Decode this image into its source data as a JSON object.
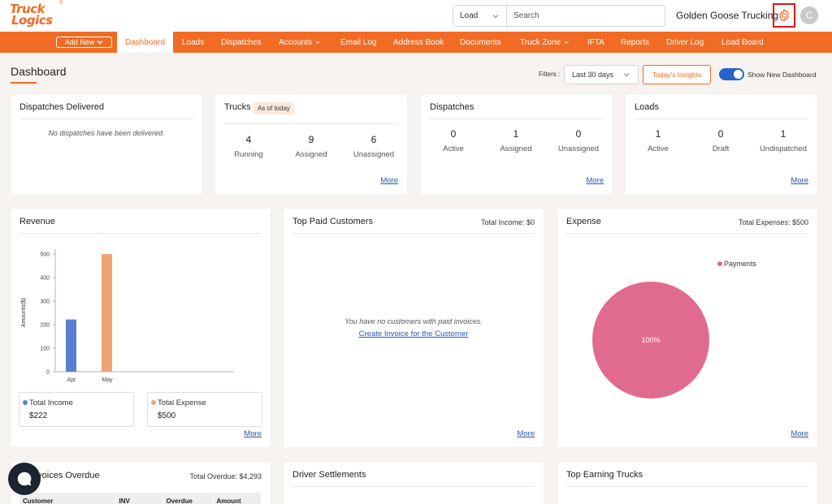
{
  "brand": {
    "line1": "Truck",
    "line2": "Logics",
    "reg": "®"
  },
  "search": {
    "type_value": "Load",
    "placeholder": "Search"
  },
  "header": {
    "company": "Golden Goose Trucking",
    "avatar_initial": "C"
  },
  "nav": {
    "add_new": "Add New",
    "items": [
      "Dashboard",
      "Loads",
      "Dispatches",
      "Accounts",
      "Email Log",
      "Address Book",
      "Documents",
      "Truck Zone",
      "IFTA",
      "Reports",
      "Driver Log",
      "Load Board"
    ]
  },
  "page": {
    "title": "Dashboard",
    "filters_label": "Filters :",
    "filter_value": "Last 30 days",
    "insights": "Today's Insights",
    "toggle_label": "Show New Dashboard",
    "toggle_on": true
  },
  "cards": {
    "dispatches_delivered": {
      "title": "Dispatches Delivered",
      "empty": "No dispatches have been delivered."
    },
    "trucks": {
      "title": "Trucks",
      "badge": "As of today",
      "stats": [
        {
          "num": "4",
          "label": "Running"
        },
        {
          "num": "9",
          "label": "Assigned"
        },
        {
          "num": "6",
          "label": "Unassigned"
        }
      ],
      "more": "More"
    },
    "dispatches": {
      "title": "Dispatches",
      "stats": [
        {
          "num": "0",
          "label": "Active"
        },
        {
          "num": "1",
          "label": "Assigned"
        },
        {
          "num": "0",
          "label": "Unassigned"
        }
      ],
      "more": "More"
    },
    "loads": {
      "title": "Loads",
      "stats": [
        {
          "num": "1",
          "label": "Active"
        },
        {
          "num": "0",
          "label": "Draft"
        },
        {
          "num": "1",
          "label": "Undispatched"
        }
      ],
      "more": "More"
    },
    "revenue": {
      "title": "Revenue",
      "more": "More",
      "income_label": "Total Income",
      "income_value": "$222",
      "expense_label": "Total Expense",
      "expense_value": "$500"
    },
    "top_paid": {
      "title": "Top Paid Customers",
      "total": "Total Income: $0",
      "empty": "You have no customers with paid invoices.",
      "link": "Create Invoice for the Customer",
      "more": "More"
    },
    "expense": {
      "title": "Expense",
      "total": "Total Expenses: $500",
      "legend": "Payments",
      "slice_label": "100%",
      "more": "More"
    },
    "invoices_overdue": {
      "title": "Invoices Overdue",
      "total": "Total Overdue: $4,293",
      "columns": [
        "Customer",
        "INV",
        "Overdue",
        "Amount"
      ]
    },
    "driver_settlements": {
      "title": "Driver Settlements"
    },
    "top_earning": {
      "title": "Top Earning Trucks"
    }
  },
  "colors": {
    "accent": "#f26b24",
    "income": "#5b7fd0",
    "expense": "#f0a474",
    "pie": "#e06b8f",
    "toggle": "#2563c9"
  },
  "chart_data": [
    {
      "type": "bar",
      "title": "Revenue",
      "ylabel": "Amounts($)",
      "categories": [
        "Apr",
        "May"
      ],
      "series": [
        {
          "name": "Total Income",
          "values": [
            222,
            0
          ]
        },
        {
          "name": "Total Expense",
          "values": [
            0,
            500
          ]
        }
      ],
      "ylim": [
        0,
        500
      ],
      "yticks": [
        0,
        100,
        200,
        300,
        400,
        500
      ],
      "grid": false,
      "legend": "bottom"
    },
    {
      "type": "pie",
      "title": "Expense",
      "slices": [
        {
          "name": "Payments",
          "value": 100
        }
      ],
      "legend": "top-right"
    }
  ]
}
